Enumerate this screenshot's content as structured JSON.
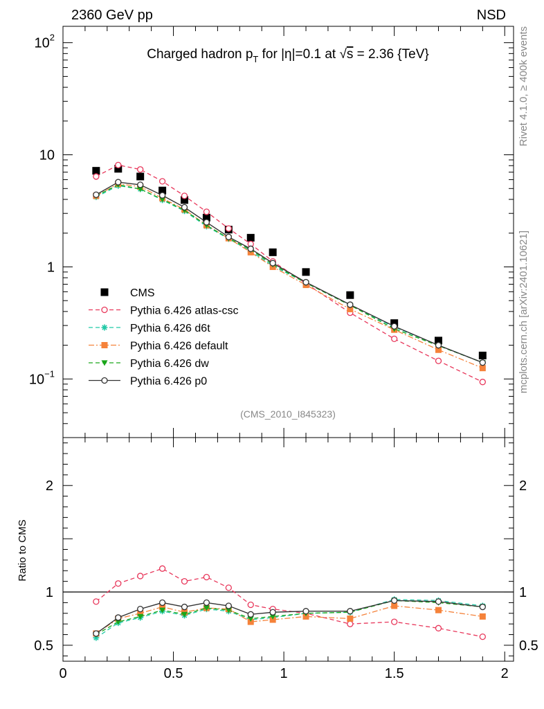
{
  "header": {
    "left": "2360 GeV pp",
    "right": "NSD"
  },
  "title": {
    "prefix": "Charged hadron p",
    "sub": "T",
    "middle": " for |η|=0.1 at √",
    "s": "s",
    "suffix": " = 2.36 {TeV}"
  },
  "side": {
    "rivet": "Rivet 4.1.0, ≥ 400k events",
    "mcplots": "mcplots.cern.ch [arXiv:2401.10621]"
  },
  "analysis_label": "(CMS_2010_I845323)",
  "colors": {
    "cms": "#000000",
    "atlas_csc": "#e8365a",
    "d6t": "#22c9a6",
    "default": "#f5823a",
    "dw": "#1aa61a",
    "p0": "#333333"
  },
  "chart_data": [
    {
      "type": "scatter",
      "name": "main",
      "yscale": "log",
      "xlim": [
        0,
        2.04
      ],
      "ylim": [
        0.03,
        140
      ],
      "y_ticks": [
        {
          "value": 100,
          "base": "10",
          "exp": "2"
        },
        {
          "value": 10,
          "label": "10"
        },
        {
          "value": 1,
          "label": "1"
        },
        {
          "value": 0.1,
          "base": "10",
          "exp": "−1"
        }
      ],
      "legend_position": "lower-left",
      "x": [
        0.15,
        0.25,
        0.35,
        0.45,
        0.55,
        0.65,
        0.75,
        0.85,
        0.95,
        1.1,
        1.3,
        1.5,
        1.7,
        1.9
      ],
      "series": [
        {
          "key": "cms",
          "name": "CMS",
          "marker": "square",
          "line": "none",
          "values": [
            7.2,
            7.5,
            6.4,
            4.8,
            3.95,
            2.75,
            2.15,
            1.82,
            1.35,
            0.9,
            0.56,
            0.315,
            0.22,
            0.162
          ]
        },
        {
          "key": "atlas_csc",
          "name": "Pythia 6.426 atlas-csc",
          "marker": "open-circle",
          "line": "dashed",
          "values": [
            6.4,
            8.1,
            7.4,
            5.8,
            4.3,
            3.1,
            2.2,
            1.6,
            1.12,
            0.71,
            0.39,
            0.228,
            0.145,
            0.094
          ]
        },
        {
          "key": "d6t",
          "name": "Pythia 6.426 d6t",
          "marker": "star",
          "line": "dashed",
          "values": [
            4.2,
            5.3,
            4.95,
            3.95,
            3.15,
            2.3,
            1.78,
            1.38,
            1.02,
            0.72,
            0.455,
            0.29,
            0.2,
            0.14
          ]
        },
        {
          "key": "default",
          "name": "Pythia 6.426 default",
          "marker": "filled-square",
          "line": "dashdot",
          "values": [
            4.3,
            5.5,
            5.2,
            4.1,
            3.25,
            2.35,
            1.8,
            1.35,
            1.0,
            0.69,
            0.42,
            0.275,
            0.182,
            0.125
          ]
        },
        {
          "key": "dw",
          "name": "Pythia 6.426 dw",
          "marker": "down-triangle",
          "line": "dashed",
          "values": [
            4.3,
            5.4,
            4.95,
            4.0,
            3.2,
            2.35,
            1.8,
            1.42,
            1.05,
            0.72,
            0.455,
            0.28,
            0.198,
            0.14
          ]
        },
        {
          "key": "p0",
          "name": "Pythia 6.426 p0",
          "marker": "open-circle",
          "line": "solid",
          "values": [
            4.4,
            5.7,
            5.4,
            4.35,
            3.4,
            2.5,
            1.85,
            1.45,
            1.08,
            0.73,
            0.46,
            0.295,
            0.2,
            0.14
          ]
        }
      ]
    },
    {
      "type": "line",
      "name": "ratio",
      "ylabel": "Ratio to CMS",
      "xlim": [
        0,
        2.04
      ],
      "ylim": [
        0.35,
        2.45
      ],
      "reference_line": 1,
      "x_ticks": [
        {
          "value": 0,
          "label": "0"
        },
        {
          "value": 0.5,
          "label": "0.5"
        },
        {
          "value": 1,
          "label": "1"
        },
        {
          "value": 1.5,
          "label": "1.5"
        },
        {
          "value": 2,
          "label": "2"
        }
      ],
      "y_ticks": [
        {
          "value": 0.5,
          "label": "0.5"
        },
        {
          "value": 1,
          "label": "1"
        },
        {
          "value": 2,
          "label": "2"
        }
      ],
      "x": [
        0.15,
        0.25,
        0.35,
        0.45,
        0.55,
        0.65,
        0.75,
        0.85,
        0.95,
        1.1,
        1.3,
        1.5,
        1.7,
        1.9
      ],
      "series": [
        {
          "key": "atlas_csc",
          "name": "Pythia 6.426 atlas-csc",
          "values": [
            0.91,
            1.08,
            1.15,
            1.22,
            1.1,
            1.14,
            1.04,
            0.88,
            0.84,
            0.8,
            0.7,
            0.72,
            0.66,
            0.58
          ]
        },
        {
          "key": "d6t",
          "name": "Pythia 6.426 d6t",
          "values": [
            0.57,
            0.71,
            0.76,
            0.82,
            0.78,
            0.84,
            0.82,
            0.74,
            0.76,
            0.8,
            0.81,
            0.93,
            0.92,
            0.87
          ]
        },
        {
          "key": "default",
          "name": "Pythia 6.426 default",
          "values": [
            0.61,
            0.75,
            0.8,
            0.86,
            0.81,
            0.85,
            0.84,
            0.72,
            0.74,
            0.77,
            0.75,
            0.87,
            0.83,
            0.77
          ]
        },
        {
          "key": "dw",
          "name": "Pythia 6.426 dw",
          "values": [
            0.6,
            0.72,
            0.77,
            0.83,
            0.79,
            0.85,
            0.83,
            0.75,
            0.77,
            0.8,
            0.81,
            0.92,
            0.9,
            0.86
          ]
        },
        {
          "key": "p0",
          "name": "Pythia 6.426 p0",
          "values": [
            0.61,
            0.76,
            0.84,
            0.9,
            0.86,
            0.9,
            0.87,
            0.79,
            0.81,
            0.82,
            0.82,
            0.92,
            0.91,
            0.86
          ]
        }
      ]
    }
  ]
}
